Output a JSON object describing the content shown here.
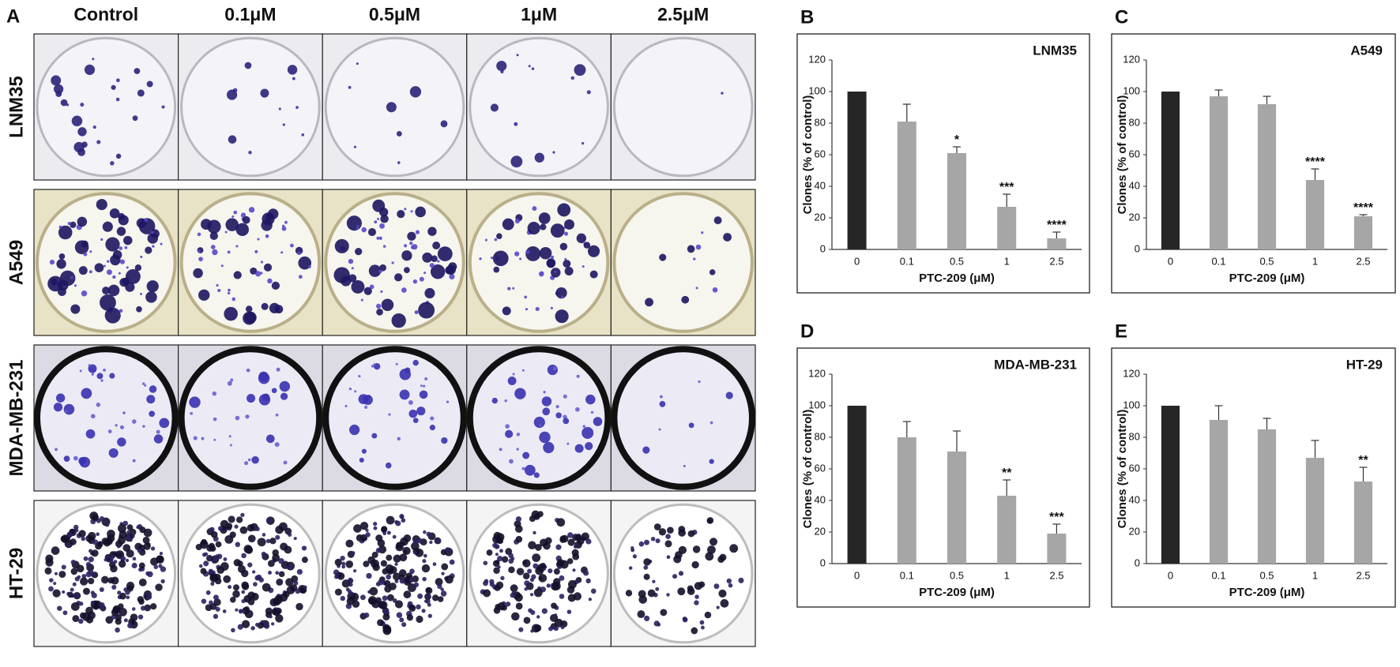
{
  "photo_panel": {
    "label": "A",
    "columns": [
      "Control",
      "0.1μM",
      "0.5μM",
      "1μM",
      "2.5μM"
    ],
    "rows": [
      "LNM35",
      "A549",
      "MDA-MB-231",
      "HT-29"
    ]
  },
  "chart_data": [
    {
      "type": "bar",
      "panel_label": "B",
      "title": "LNM35",
      "x_label": "PTC-209 (μM)",
      "y_label": "Clones (% of control)",
      "categories": [
        "0",
        "0.1",
        "0.5",
        "1",
        "2.5"
      ],
      "values": [
        100,
        81,
        61,
        27,
        7
      ],
      "errors": [
        null,
        11,
        4,
        8,
        4
      ],
      "annotations": [
        null,
        null,
        "*",
        "***",
        "****"
      ],
      "colors": [
        "#262626",
        "#a6a6a6",
        "#a6a6a6",
        "#a6a6a6",
        "#a6a6a6"
      ],
      "ylim": [
        0,
        120
      ],
      "yticks": [
        0,
        20,
        40,
        60,
        80,
        100,
        120
      ],
      "grid": false
    },
    {
      "type": "bar",
      "panel_label": "C",
      "title": "A549",
      "x_label": "PTC-209 (μM)",
      "y_label": "Clones (% of control)",
      "categories": [
        "0",
        "0.1",
        "0.5",
        "1",
        "2.5"
      ],
      "values": [
        100,
        97,
        92,
        44,
        21
      ],
      "errors": [
        null,
        4,
        5,
        7,
        1
      ],
      "annotations": [
        null,
        null,
        null,
        "****",
        "****"
      ],
      "colors": [
        "#262626",
        "#a6a6a6",
        "#a6a6a6",
        "#a6a6a6",
        "#a6a6a6"
      ],
      "ylim": [
        0,
        120
      ],
      "yticks": [
        0,
        20,
        40,
        60,
        80,
        100,
        120
      ],
      "grid": false
    },
    {
      "type": "bar",
      "panel_label": "D",
      "title": "MDA-MB-231",
      "x_label": "PTC-209 (μM)",
      "y_label": "Clones (% of control)",
      "categories": [
        "0",
        "0.1",
        "0.5",
        "1",
        "2.5"
      ],
      "values": [
        100,
        80,
        71,
        43,
        19
      ],
      "errors": [
        null,
        10,
        13,
        10,
        6
      ],
      "annotations": [
        null,
        null,
        null,
        "**",
        "***"
      ],
      "colors": [
        "#262626",
        "#a6a6a6",
        "#a6a6a6",
        "#a6a6a6",
        "#a6a6a6"
      ],
      "ylim": [
        0,
        120
      ],
      "yticks": [
        0,
        20,
        40,
        60,
        80,
        100,
        120
      ],
      "grid": false
    },
    {
      "type": "bar",
      "panel_label": "E",
      "title": "HT-29",
      "x_label": "PTC-209 (μM)",
      "y_label": "Clones (% of control)",
      "categories": [
        "0",
        "0.1",
        "0.5",
        "1",
        "2.5"
      ],
      "values": [
        100,
        91,
        85,
        67,
        52
      ],
      "errors": [
        null,
        9,
        7,
        11,
        9
      ],
      "annotations": [
        null,
        null,
        null,
        null,
        "**"
      ],
      "colors": [
        "#262626",
        "#a6a6a6",
        "#a6a6a6",
        "#a6a6a6",
        "#a6a6a6"
      ],
      "ylim": [
        0,
        120
      ],
      "yticks": [
        0,
        20,
        40,
        60,
        80,
        100,
        120
      ],
      "grid": false
    }
  ]
}
